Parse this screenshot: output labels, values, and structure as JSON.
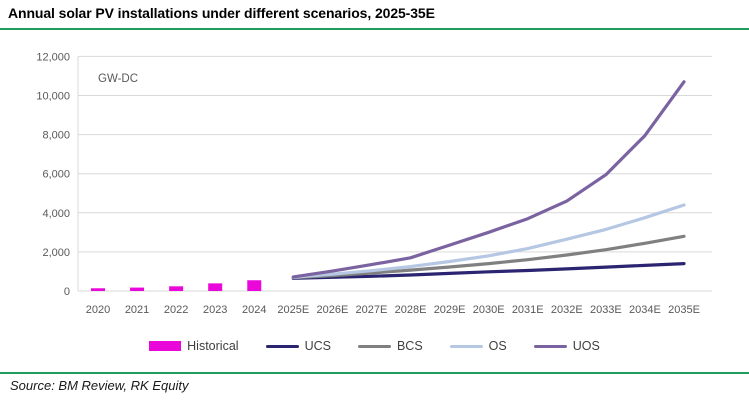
{
  "header": {
    "title": "Annual solar PV installations under different scenarios, 2025-35E"
  },
  "footer": {
    "source": "Source: BM Review, RK Equity"
  },
  "colors": {
    "accent_rule_green": "#1F9D5B",
    "gridline": "#D9D9D9",
    "axis_text": "#595959",
    "legend_text": "#404040",
    "historical_magenta": "#E908D9",
    "ucs_navy": "#2B2571",
    "bcs_gray": "#808080",
    "os_lightblue": "#B5C7E3",
    "uos_purple": "#7A63A0"
  },
  "chart_data": {
    "type": "bar",
    "subtype": "combo bar (historical) + line (scenarios)",
    "title": "Annual solar PV installations under different scenarios, 2025-35E",
    "unit_label": "GW-DC",
    "xlabel": "",
    "ylabel": "GW-DC",
    "ylim": [
      0,
      12000
    ],
    "y_ticks": [
      "0",
      "2,000",
      "4,000",
      "6,000",
      "8,000",
      "10,000",
      "12,000"
    ],
    "y_tick_values": [
      0,
      2000,
      4000,
      6000,
      8000,
      10000,
      12000
    ],
    "grid": "horizontal",
    "legend_position": "bottom",
    "categories": [
      "2020",
      "2021",
      "2022",
      "2023",
      "2024",
      "2025E",
      "2026E",
      "2027E",
      "2028E",
      "2029E",
      "2030E",
      "2031E",
      "2032E",
      "2033E",
      "2034E",
      "2035E"
    ],
    "historical": {
      "name": "Historical",
      "style": "bar",
      "color": "#E908D9",
      "categories": [
        "2020",
        "2021",
        "2022",
        "2023",
        "2024"
      ],
      "values": [
        140,
        175,
        240,
        390,
        550
      ]
    },
    "series_start_category": "2025E",
    "series": [
      {
        "name": "UCS",
        "style": "line",
        "color": "#2B2571",
        "values": [
          650,
          700,
          750,
          820,
          900,
          980,
          1050,
          1130,
          1220,
          1310,
          1400
        ]
      },
      {
        "name": "BCS",
        "style": "line",
        "color": "#808080",
        "values": [
          680,
          790,
          920,
          1070,
          1230,
          1400,
          1600,
          1840,
          2110,
          2440,
          2800
        ]
      },
      {
        "name": "OS",
        "style": "line",
        "color": "#B5C7E3",
        "values": [
          700,
          860,
          1040,
          1250,
          1510,
          1800,
          2170,
          2650,
          3150,
          3750,
          4400
        ]
      },
      {
        "name": "UOS",
        "style": "line",
        "color": "#7A63A0",
        "values": [
          720,
          1020,
          1350,
          1700,
          2350,
          3000,
          3700,
          4600,
          5950,
          7950,
          10700
        ]
      }
    ]
  }
}
